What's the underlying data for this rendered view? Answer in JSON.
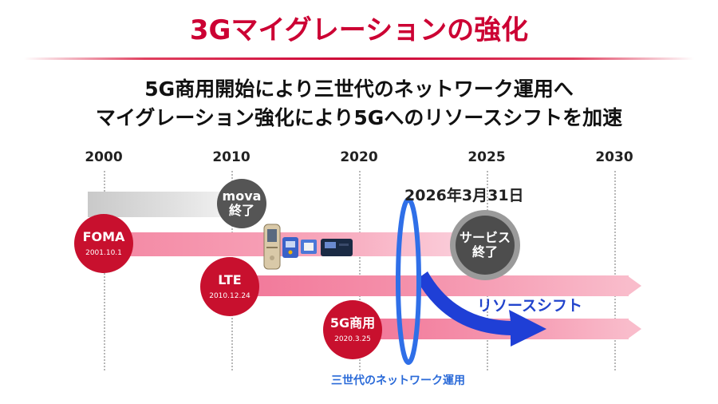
{
  "title": "3Gマイグレーションの強化",
  "subtitle": {
    "line1": "5G商用開始により三世代のネットワーク運用へ",
    "line2": "マイグレーション強化により5Gへのリソースシフトを加速"
  },
  "timeline": {
    "year_start": 2000,
    "year_end": 2030,
    "years": [
      "2000",
      "2010",
      "2020",
      "2025",
      "2030"
    ]
  },
  "services": {
    "mova": {
      "name": "mova",
      "status": "終了"
    },
    "foma": {
      "name": "FOMA",
      "date": "2001.10.1"
    },
    "lte": {
      "name": "LTE",
      "date": "2010.12.24"
    },
    "g5": {
      "name": "5G商用",
      "date": "2020.3.25"
    },
    "service_end": {
      "line1": "サービス",
      "line2": "終了"
    }
  },
  "annotations": {
    "end_date": "2026年3月31日",
    "resource_shift": "リソースシフト",
    "three_generation": "三世代のネットワーク運用"
  },
  "colors": {
    "title_red": "#cc0033",
    "circle_red": "#c8102e",
    "circle_grey": "#555555",
    "shift_blue": "#1f3fd6",
    "ring_blue": "#2f6fe8"
  },
  "icons": [
    "flip-phone-icon",
    "data-card-icon",
    "usb-modem-icon",
    "router-device-icon"
  ]
}
